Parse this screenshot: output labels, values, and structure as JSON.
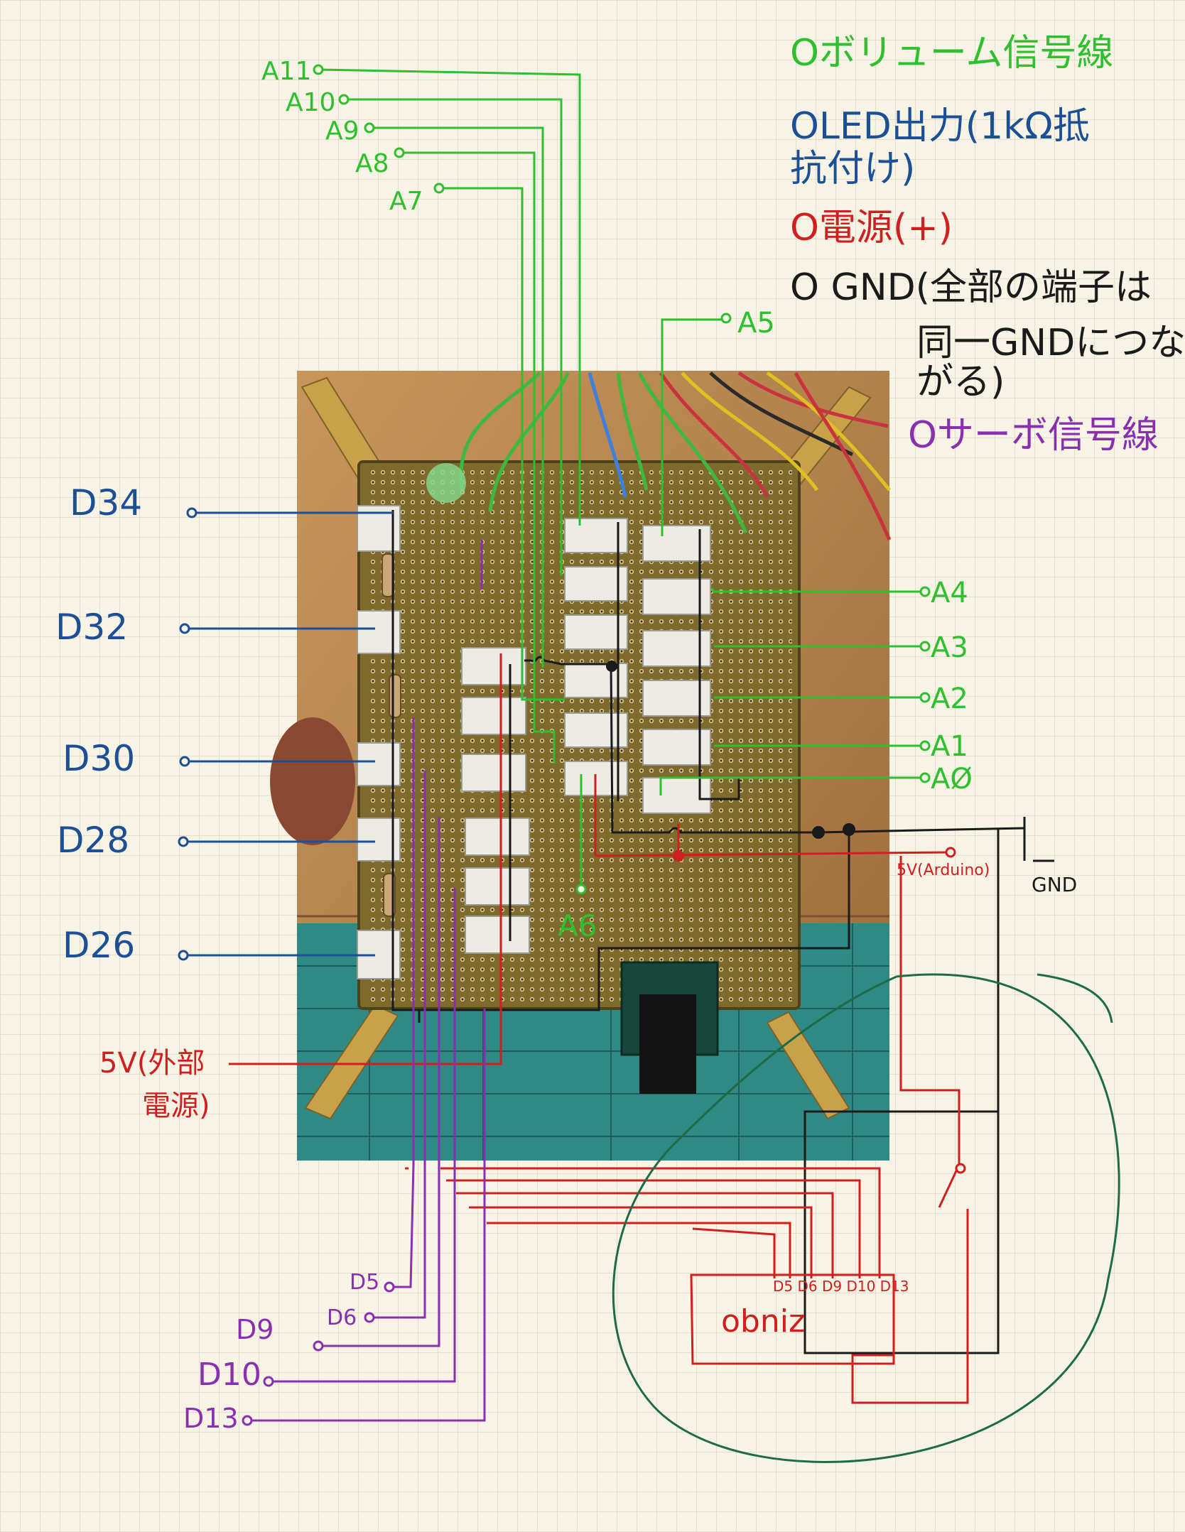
{
  "legend": {
    "volume": "Oボリューム信号線",
    "oled_line1": "OLED出力(1kΩ抵",
    "oled_line2": "抗付け)",
    "power": "O電源(+)",
    "gnd_line1": "O GND(全部の端子は",
    "gnd_line2": "同一GNDにつな",
    "gnd_line3": "がる)",
    "servo": "Oサーボ信号線"
  },
  "labels": {
    "a11": "A11",
    "a10": "A10",
    "a9": "A9",
    "a8": "A8",
    "a7": "A7",
    "a5": "A5",
    "a4": "A4",
    "a3": "A3",
    "a2": "A2",
    "a1": "A1",
    "a0": "AØ",
    "a6": "A6",
    "d34": "D34",
    "d32": "D32",
    "d30": "D30",
    "d28": "D28",
    "d26": "D26",
    "ext_power_line1": "5V(外部",
    "ext_power_line2": "電源)",
    "arduino_5v": "5V(Arduino)",
    "gnd": "GND",
    "d5": "D5",
    "d6": "D6",
    "d9": "D9",
    "d10": "D10",
    "d13": "D13",
    "obniz": "obniz",
    "obniz_pins": "D5 D6 D9 D10 D13"
  },
  "colors": {
    "volume": "#2fbf2f",
    "oled": "#1d4f96",
    "power": "#d11f1f",
    "gnd": "#1a1a1a",
    "servo": "#8a2fb0",
    "loop": "#1f6b45",
    "board": "#7d6a2c",
    "wood": "#b7854e",
    "mat": "#2f8a86"
  }
}
